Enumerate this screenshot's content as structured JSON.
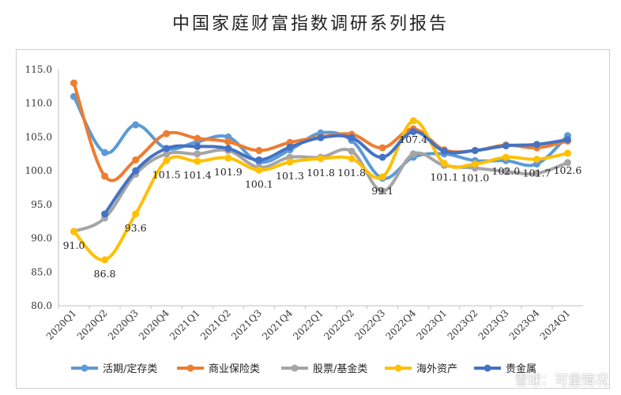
{
  "chart_data": {
    "type": "line",
    "title": "中国家庭财富指数调研系列报告",
    "xlabel": "",
    "ylabel": "",
    "ylim": [
      80,
      115
    ],
    "yticks": [
      "80.0",
      "85.0",
      "90.0",
      "95.0",
      "100.0",
      "105.0",
      "110.0",
      "115.0"
    ],
    "grid": false,
    "legend_position": "bottom",
    "categories": [
      "2020Q1",
      "2020Q2",
      "2020Q3",
      "2020Q4",
      "2021Q1",
      "2021Q2",
      "2021Q3",
      "2021Q4",
      "2022Q1",
      "2022Q2",
      "2022Q3",
      "2022Q4",
      "2023Q1",
      "2023Q2",
      "2023Q3",
      "2023Q4",
      "2024Q1"
    ],
    "series": [
      {
        "name": "活期/定存类",
        "color": "#5b9bd5",
        "values": [
          111.0,
          102.7,
          106.8,
          103.3,
          104.3,
          105.0,
          101.3,
          103.1,
          105.6,
          104.5,
          98.9,
          102.0,
          102.5,
          101.5,
          101.5,
          101.0,
          105.2
        ]
      },
      {
        "name": "商业保险类",
        "color": "#ed7d31",
        "values": [
          113.0,
          99.2,
          101.6,
          105.5,
          104.8,
          104.3,
          103.0,
          104.2,
          105.0,
          105.4,
          103.4,
          106.2,
          103.1,
          103.0,
          103.8,
          103.4,
          104.4
        ]
      },
      {
        "name": "股票/基金类",
        "color": "#a5a5a5",
        "values": [
          91.0,
          93.0,
          99.5,
          102.5,
          102.5,
          103.0,
          100.5,
          102.0,
          102.0,
          102.9,
          97.0,
          102.5,
          100.8,
          100.4,
          99.9,
          99.6,
          101.2
        ]
      },
      {
        "name": "海外资产",
        "color": "#ffc000",
        "values": [
          91.0,
          86.8,
          93.6,
          101.5,
          101.4,
          101.9,
          100.1,
          101.3,
          101.8,
          101.8,
          99.1,
          107.4,
          101.1,
          101.0,
          102.0,
          101.7,
          102.6
        ]
      },
      {
        "name": "贵金属",
        "color": "#4472c4",
        "values": [
          null,
          93.6,
          100.0,
          103.3,
          103.6,
          103.3,
          101.6,
          103.5,
          104.9,
          104.9,
          102.0,
          105.8,
          102.9,
          103.0,
          103.7,
          103.9,
          104.6
        ]
      }
    ],
    "data_labels": {
      "series": "海外资产",
      "values": [
        "91.0",
        "86.8",
        "93.6",
        "101.5",
        "101.4",
        "101.9",
        "100.1",
        "101.3",
        "101.8",
        "101.8",
        "99.1",
        "107.4",
        "101.1",
        "101.0",
        "102.0",
        "101.7",
        "102.6"
      ]
    }
  },
  "watermark": "雪球：可量情况"
}
